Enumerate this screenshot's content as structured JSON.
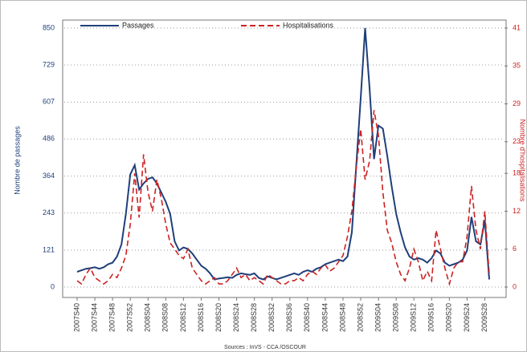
{
  "chart_data": {
    "type": "line",
    "y_label": "Nombre de passages",
    "y2_label": "Nombre d'hospitalisations",
    "source": "Sources : InVS - CCA /OSCOUR",
    "categories": [
      "2007S40",
      null,
      null,
      null,
      "2007S44",
      null,
      null,
      null,
      "2007S48",
      null,
      null,
      null,
      "2007S52",
      null,
      null,
      null,
      "2008S04",
      null,
      null,
      null,
      "2008S08",
      null,
      null,
      null,
      "2008S12",
      null,
      null,
      null,
      "2008S16",
      null,
      null,
      null,
      "2008S20",
      null,
      null,
      null,
      "2008S24",
      null,
      null,
      null,
      "2008S28",
      null,
      null,
      null,
      "2008S32",
      null,
      null,
      null,
      "2008S36",
      null,
      null,
      null,
      "2008S40",
      null,
      null,
      null,
      "2008S44",
      null,
      null,
      null,
      "2008S48",
      null,
      null,
      null,
      "2008S52",
      null,
      null,
      null,
      "2009S04",
      null,
      null,
      null,
      "2009S08",
      null,
      null,
      null,
      "2009S12",
      null,
      null,
      null,
      "2009S16",
      null,
      null,
      null,
      "2009S20",
      null,
      null,
      null,
      "2009S24",
      null,
      null,
      null,
      "2009S28",
      null
    ],
    "series": [
      {
        "name": "Passages",
        "color": "#1f3f7a",
        "dash": false,
        "values": [
          50,
          55,
          60,
          62,
          65,
          60,
          65,
          75,
          80,
          100,
          140,
          240,
          370,
          400,
          320,
          340,
          355,
          360,
          340,
          310,
          280,
          240,
          150,
          120,
          130,
          125,
          110,
          90,
          70,
          60,
          45,
          25,
          28,
          30,
          32,
          30,
          40,
          45,
          42,
          40,
          45,
          30,
          25,
          35,
          30,
          25,
          30,
          35,
          40,
          45,
          40,
          50,
          55,
          50,
          60,
          65,
          75,
          80,
          85,
          90,
          85,
          100,
          180,
          400,
          620,
          850,
          650,
          420,
          530,
          520,
          430,
          330,
          240,
          180,
          130,
          100,
          90,
          95,
          90,
          80,
          95,
          120,
          110,
          80,
          70,
          75,
          80,
          90,
          120,
          230,
          150,
          140,
          220,
          25
        ]
      },
      {
        "name": "Hospitalisations",
        "color": "#cc2222",
        "dash": true,
        "axis": "y2",
        "values": [
          1,
          0.5,
          2,
          3,
          1.5,
          1,
          0.5,
          1,
          2,
          1.5,
          3,
          5,
          10,
          18,
          11,
          21,
          15,
          12,
          17,
          14,
          10,
          7,
          6,
          5,
          4.5,
          6,
          3,
          2,
          1,
          0.5,
          1,
          1.5,
          0.5,
          0.5,
          1,
          2,
          3,
          1.5,
          2,
          1,
          1.5,
          1,
          0.5,
          2,
          1.5,
          1,
          0.5,
          0.5,
          1,
          1,
          1.5,
          1,
          2,
          2.5,
          2,
          3,
          3.5,
          2.5,
          3,
          4,
          5,
          8,
          12,
          19,
          25,
          17,
          20,
          28,
          24,
          15,
          9,
          7,
          4,
          2,
          1,
          3,
          6,
          4,
          1,
          2.5,
          1,
          9,
          6,
          3,
          0.5,
          3,
          4,
          4,
          8,
          16,
          9,
          6,
          12,
          2
        ]
      }
    ],
    "ylim": [
      0,
      850
    ],
    "yticks": [
      0,
      121,
      243,
      364,
      486,
      607,
      729,
      850
    ],
    "y2lim": [
      0,
      41
    ],
    "y2ticks": [
      0,
      6,
      12,
      18,
      23,
      29,
      35,
      41
    ],
    "grid": true
  }
}
